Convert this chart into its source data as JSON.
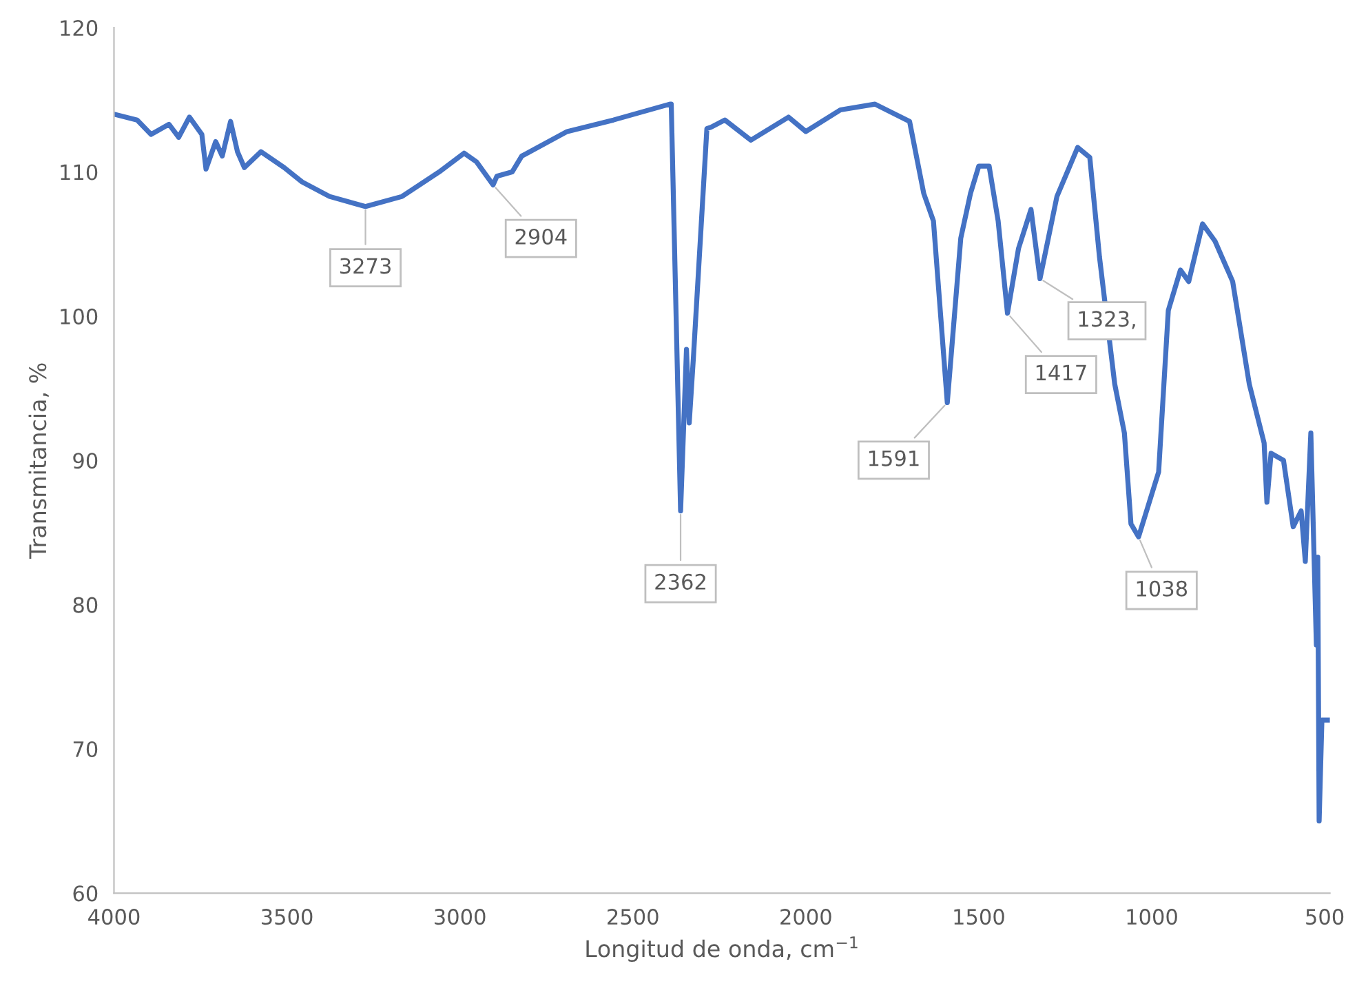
{
  "chart_data": {
    "type": "line",
    "xlabel": "Longitud de onda, cm$^{−1}$",
    "ylabel": "Transmitancia, %",
    "xlim": [
      4000,
      485
    ],
    "xticks": [
      4000,
      3500,
      3000,
      2500,
      2000,
      1500,
      1000,
      500
    ],
    "ylim": [
      60,
      120
    ],
    "yticks": [
      60,
      70,
      80,
      90,
      100,
      110,
      120
    ],
    "grid": false,
    "marker": "none",
    "line_style": "solid",
    "series": [
      {
        "color": "#4472c4",
        "x": [
          4000,
          3933,
          3893,
          3841,
          3813,
          3782,
          3746,
          3734,
          3706,
          3687,
          3663,
          3643,
          3623,
          3575,
          3508,
          3456,
          3377,
          3273,
          3167,
          3060,
          2988,
          2952,
          2904,
          2893,
          2849,
          2821,
          2690,
          2556,
          2393,
          2389,
          2362,
          2345,
          2337,
          2325,
          2286,
          2274,
          2234,
          2159,
          2050,
          2000,
          1900,
          1800,
          1700,
          1659,
          1631,
          1591,
          1552,
          1524,
          1500,
          1470,
          1444,
          1417,
          1385,
          1349,
          1323,
          1274,
          1214,
          1179,
          1151,
          1107,
          1079,
          1060,
          1038,
          980,
          952,
          917,
          893,
          853,
          817,
          766,
          718,
          675,
          667,
          655,
          619,
          591,
          568,
          556,
          540,
          524,
          520,
          516,
          508,
          488
        ],
        "values": [
          114.0,
          113.6,
          112.6,
          113.3,
          112.4,
          113.8,
          112.6,
          110.2,
          112.1,
          111.1,
          113.5,
          111.4,
          110.3,
          111.4,
          110.3,
          109.3,
          108.3,
          107.6,
          108.3,
          110.0,
          111.3,
          110.7,
          109.1,
          109.7,
          110.0,
          111.1,
          112.8,
          113.6,
          114.7,
          114.7,
          86.5,
          97.7,
          92.6,
          97.1,
          113.0,
          113.1,
          113.6,
          112.2,
          113.8,
          112.8,
          114.3,
          114.7,
          113.5,
          108.5,
          106.6,
          94.0,
          105.4,
          108.5,
          110.4,
          110.4,
          106.6,
          100.2,
          104.7,
          107.4,
          102.6,
          108.3,
          111.7,
          111.0,
          104.1,
          95.3,
          91.9,
          85.6,
          84.7,
          89.2,
          100.4,
          103.2,
          102.4,
          106.4,
          105.2,
          102.4,
          95.3,
          91.2,
          87.1,
          90.5,
          90.0,
          85.4,
          86.5,
          83.0,
          91.9,
          77.2,
          83.3,
          65.0,
          72.0,
          72.0
        ]
      }
    ],
    "annotations": [
      {
        "text": "3273",
        "x": 3273,
        "y": 107.6
      },
      {
        "text": "2904",
        "x": 2904,
        "y": 109.1
      },
      {
        "text": "2362",
        "x": 2362,
        "y": 86.5
      },
      {
        "text": "1591",
        "x": 1591,
        "y": 94.0
      },
      {
        "text": "1417",
        "x": 1417,
        "y": 100.2
      },
      {
        "text": "1323,",
        "x": 1323,
        "y": 102.6
      },
      {
        "text": "1038",
        "x": 1038,
        "y": 84.7
      }
    ]
  }
}
